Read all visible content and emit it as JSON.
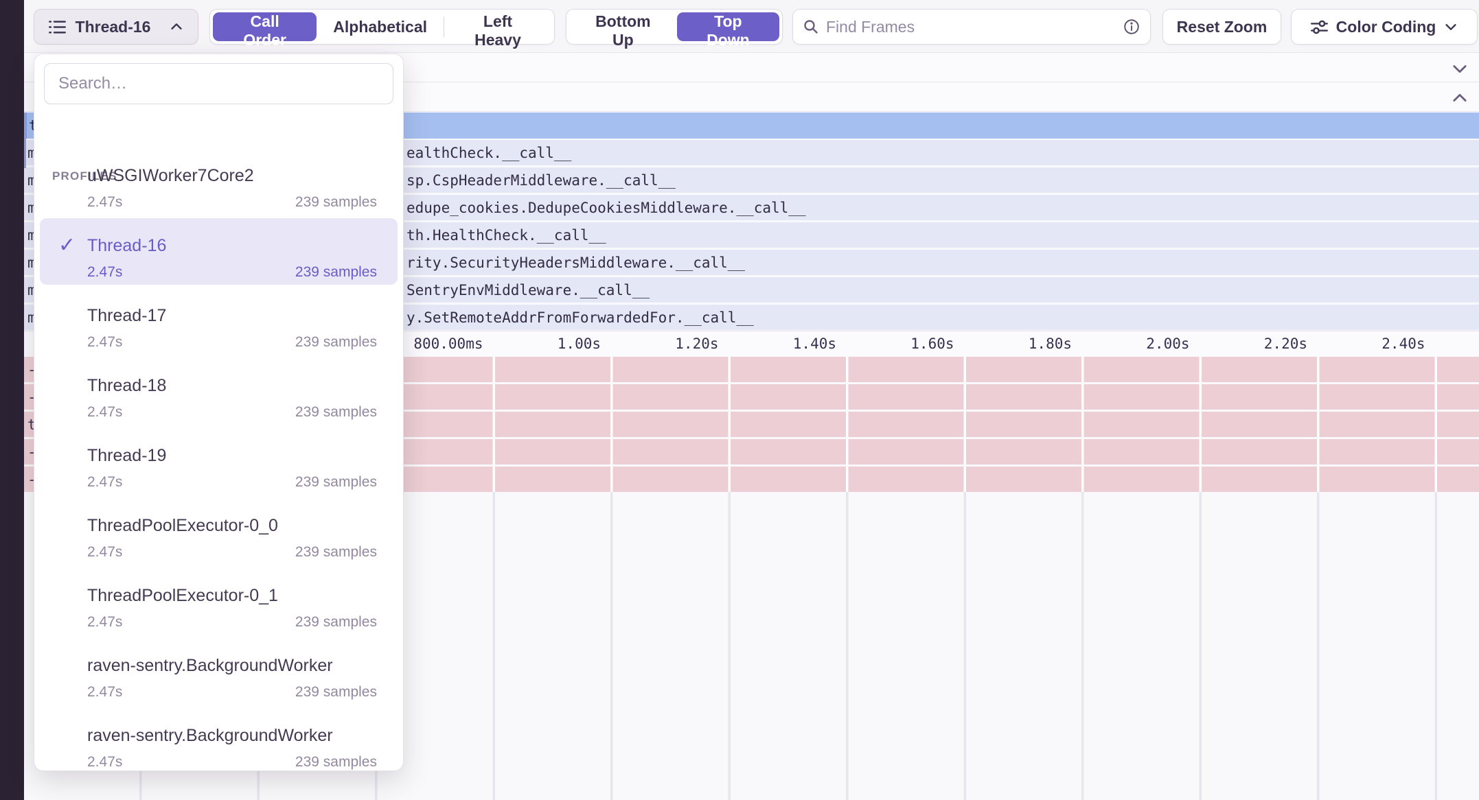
{
  "toolbar": {
    "thread_selector": {
      "label": "Thread-16"
    },
    "sort_modes": {
      "options": [
        "Call Order",
        "Alphabetical",
        "Left Heavy"
      ],
      "selected": "Call Order"
    },
    "view_modes": {
      "options": [
        "Bottom Up",
        "Top Down"
      ],
      "selected": "Top Down"
    },
    "search": {
      "placeholder": "Find Frames",
      "value": ""
    },
    "reset_zoom_label": "Reset Zoom",
    "color_coding_label": "Color Coding"
  },
  "dropdown": {
    "search_placeholder": "Search…",
    "search_value": "",
    "group_label": "PROFILES",
    "items": [
      {
        "name": "uWSGIWorker7Core2",
        "duration": "2.47s",
        "samples": "239 samples",
        "selected": false
      },
      {
        "name": "Thread-16",
        "duration": "2.47s",
        "samples": "239 samples",
        "selected": true
      },
      {
        "name": "Thread-17",
        "duration": "2.47s",
        "samples": "239 samples",
        "selected": false
      },
      {
        "name": "Thread-18",
        "duration": "2.47s",
        "samples": "239 samples",
        "selected": false
      },
      {
        "name": "Thread-19",
        "duration": "2.47s",
        "samples": "239 samples",
        "selected": false
      },
      {
        "name": "ThreadPoolExecutor-0_0",
        "duration": "2.47s",
        "samples": "239 samples",
        "selected": false
      },
      {
        "name": "ThreadPoolExecutor-0_1",
        "duration": "2.47s",
        "samples": "239 samples",
        "selected": false
      },
      {
        "name": "raven-sentry.BackgroundWorker",
        "duration": "2.47s",
        "samples": "239 samples",
        "selected": false
      },
      {
        "name": "raven-sentry.BackgroundWorker",
        "duration": "2.47s",
        "samples": "239 samples",
        "selected": false
      }
    ]
  },
  "flamegraph": {
    "selected_frame": {
      "peek": "t",
      "label": ""
    },
    "frames": [
      {
        "peek": "m",
        "label": "ealthCheck.__call__"
      },
      {
        "peek": "m",
        "label": "sp.CspHeaderMiddleware.__call__"
      },
      {
        "peek": "m",
        "label": "edupe_cookies.DedupeCookiesMiddleware.__call__"
      },
      {
        "peek": "m",
        "label": "th.HealthCheck.__call__"
      },
      {
        "peek": "m",
        "label": "rity.SecurityHeadersMiddleware.__call__"
      },
      {
        "peek": "m",
        "label": "SentryEnvMiddleware.__call__"
      },
      {
        "peek": "m",
        "label": "y.SetRemoteAddrFromForwardedFor.__call__"
      }
    ],
    "slow_frames": [
      {
        "peek": "-"
      },
      {
        "peek": "-"
      },
      {
        "peek": "t"
      },
      {
        "peek": "-"
      },
      {
        "peek": "-"
      }
    ],
    "axis_ticks": [
      "800.00ms",
      "1.00s",
      "1.20s",
      "1.40s",
      "1.60s",
      "1.80s",
      "2.00s",
      "2.20s",
      "2.40s"
    ]
  },
  "colors": {
    "accent": "#6C5FC8",
    "selected_frame": "#A6BFF1",
    "frame_row": "#E4E7F6",
    "slow_frame": "#ECCED4",
    "sidebar": "#2B2233"
  }
}
